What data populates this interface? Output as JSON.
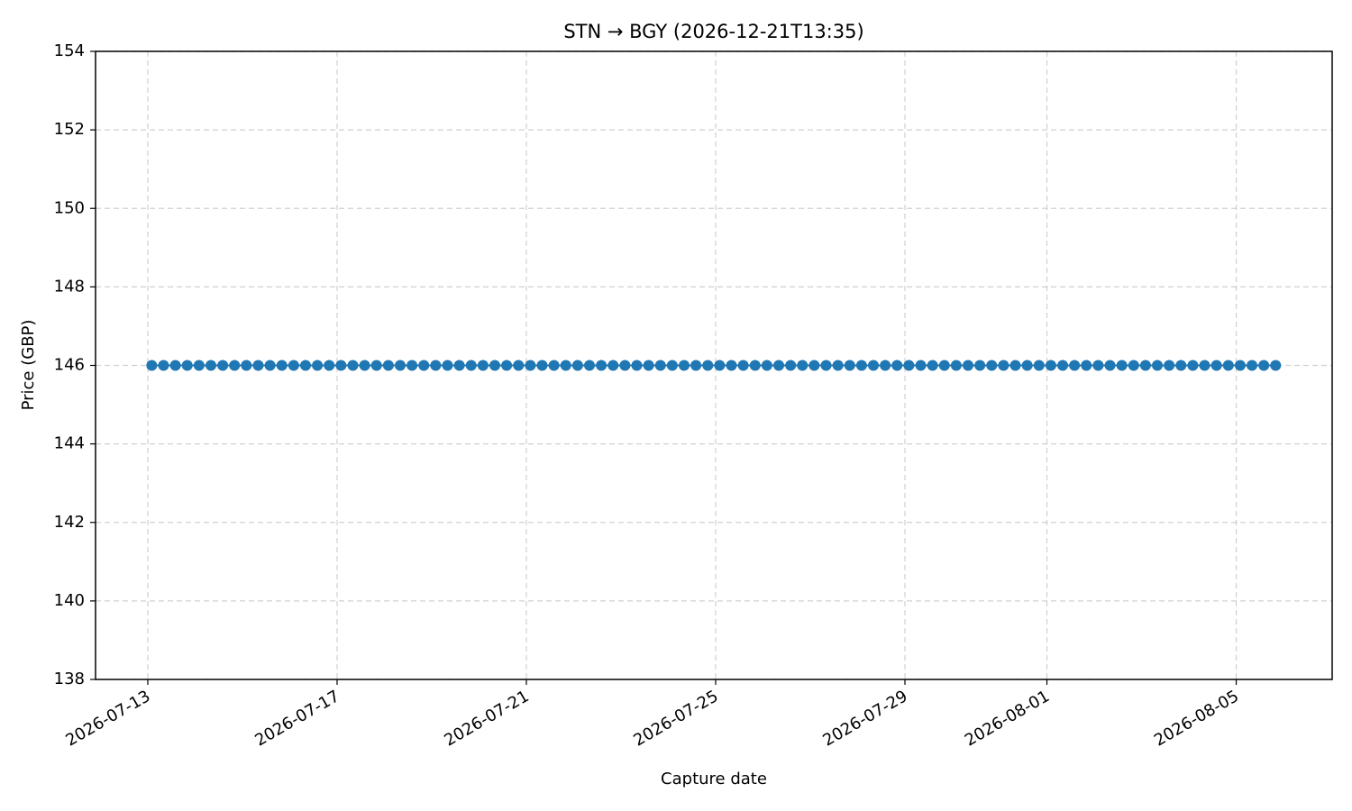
{
  "chart_data": {
    "type": "line",
    "title": "STN → BGY (2026-12-21T13:35)",
    "x_label": "Capture date",
    "y_label": "Price (GBP)",
    "series": [
      {
        "name": "Price",
        "color": "#1f77b4",
        "marker": true,
        "x": [
          "2026-07-13T02:00",
          "2026-07-13T08:00",
          "2026-07-13T14:00",
          "2026-07-13T20:00",
          "2026-07-14T02:00",
          "2026-07-14T08:00",
          "2026-07-14T14:00",
          "2026-07-14T20:00",
          "2026-07-15T02:00",
          "2026-07-15T08:00",
          "2026-07-15T14:00",
          "2026-07-15T20:00",
          "2026-07-16T02:00",
          "2026-07-16T08:00",
          "2026-07-16T14:00",
          "2026-07-16T20:00",
          "2026-07-17T02:00",
          "2026-07-17T08:00",
          "2026-07-17T14:00",
          "2026-07-17T20:00",
          "2026-07-18T02:00",
          "2026-07-18T08:00",
          "2026-07-18T14:00",
          "2026-07-18T20:00",
          "2026-07-19T02:00",
          "2026-07-19T08:00",
          "2026-07-19T14:00",
          "2026-07-19T20:00",
          "2026-07-20T02:00",
          "2026-07-20T08:00",
          "2026-07-20T14:00",
          "2026-07-20T20:00",
          "2026-07-21T02:00",
          "2026-07-21T08:00",
          "2026-07-21T14:00",
          "2026-07-21T20:00",
          "2026-07-22T02:00",
          "2026-07-22T08:00",
          "2026-07-22T14:00",
          "2026-07-22T20:00",
          "2026-07-23T02:00",
          "2026-07-23T08:00",
          "2026-07-23T14:00",
          "2026-07-23T20:00",
          "2026-07-24T02:00",
          "2026-07-24T08:00",
          "2026-07-24T14:00",
          "2026-07-24T20:00",
          "2026-07-25T02:00",
          "2026-07-25T08:00",
          "2026-07-25T14:00",
          "2026-07-25T20:00",
          "2026-07-26T02:00",
          "2026-07-26T08:00",
          "2026-07-26T14:00",
          "2026-07-26T20:00",
          "2026-07-27T02:00",
          "2026-07-27T08:00",
          "2026-07-27T14:00",
          "2026-07-27T20:00",
          "2026-07-28T02:00",
          "2026-07-28T08:00",
          "2026-07-28T14:00",
          "2026-07-28T20:00",
          "2026-07-29T02:00",
          "2026-07-29T08:00",
          "2026-07-29T14:00",
          "2026-07-29T20:00",
          "2026-07-30T02:00",
          "2026-07-30T08:00",
          "2026-07-30T14:00",
          "2026-07-30T20:00",
          "2026-07-31T02:00",
          "2026-07-31T08:00",
          "2026-07-31T14:00",
          "2026-07-31T20:00",
          "2026-08-01T02:00",
          "2026-08-01T08:00",
          "2026-08-01T14:00",
          "2026-08-01T20:00",
          "2026-08-02T02:00",
          "2026-08-02T08:00",
          "2026-08-02T14:00",
          "2026-08-02T20:00",
          "2026-08-03T02:00",
          "2026-08-03T08:00",
          "2026-08-03T14:00",
          "2026-08-03T20:00",
          "2026-08-04T02:00",
          "2026-08-04T08:00",
          "2026-08-04T14:00",
          "2026-08-04T20:00",
          "2026-08-05T02:00",
          "2026-08-05T08:00",
          "2026-08-05T14:00",
          "2026-08-05T20:00"
        ],
        "values": [
          146,
          146,
          146,
          146,
          146,
          146,
          146,
          146,
          146,
          146,
          146,
          146,
          146,
          146,
          146,
          146,
          146,
          146,
          146,
          146,
          146,
          146,
          146,
          146,
          146,
          146,
          146,
          146,
          146,
          146,
          146,
          146,
          146,
          146,
          146,
          146,
          146,
          146,
          146,
          146,
          146,
          146,
          146,
          146,
          146,
          146,
          146,
          146,
          146,
          146,
          146,
          146,
          146,
          146,
          146,
          146,
          146,
          146,
          146,
          146,
          146,
          146,
          146,
          146,
          146,
          146,
          146,
          146,
          146,
          146,
          146,
          146,
          146,
          146,
          146,
          146,
          146,
          146,
          146,
          146,
          146,
          146,
          146,
          146,
          146,
          146,
          146,
          146,
          146,
          146,
          146,
          146,
          146,
          146,
          146,
          146
        ]
      }
    ],
    "xlim": [
      "2026-07-11T21:30",
      "2026-08-07T00:40"
    ],
    "xticks": [
      "2026-07-13",
      "2026-07-17",
      "2026-07-21",
      "2026-07-25",
      "2026-07-29",
      "2026-08-01",
      "2026-08-05"
    ],
    "ylim": [
      138,
      154
    ],
    "yticks": [
      138,
      140,
      142,
      144,
      146,
      148,
      150,
      152,
      154
    ],
    "grid": true
  }
}
